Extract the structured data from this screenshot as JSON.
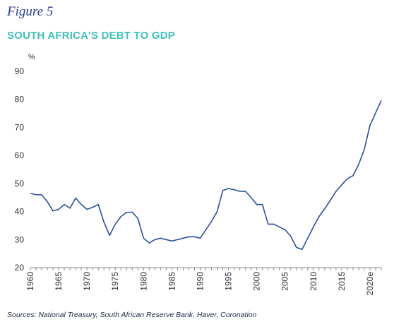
{
  "header": {
    "figure_label": "Figure 5",
    "title": "SOUTH AFRICA'S DEBT TO GDP"
  },
  "footer": {
    "sources": "Sources: National Treasury, South African Reserve Bank, Haver, Coronation"
  },
  "colors": {
    "line": "#2b4f9e",
    "title": "#3ec1bd",
    "figure_label": "#2a3a8c"
  },
  "chart_data": {
    "type": "line",
    "title": "SOUTH AFRICA'S DEBT TO GDP",
    "ylabel": "%",
    "xlabel": "",
    "ylim": [
      20,
      90
    ],
    "xlim": [
      1960,
      2022
    ],
    "y_ticks": [
      20,
      30,
      40,
      50,
      60,
      70,
      80,
      90
    ],
    "x_ticks": [
      {
        "value": 1960,
        "label": "1960"
      },
      {
        "value": 1965,
        "label": "1965"
      },
      {
        "value": 1970,
        "label": "1970"
      },
      {
        "value": 1975,
        "label": "1975"
      },
      {
        "value": 1980,
        "label": "1980"
      },
      {
        "value": 1985,
        "label": "1985"
      },
      {
        "value": 1990,
        "label": "1990"
      },
      {
        "value": 1995,
        "label": "1995"
      },
      {
        "value": 2000,
        "label": "2000"
      },
      {
        "value": 2005,
        "label": "2005"
      },
      {
        "value": 2010,
        "label": "2010"
      },
      {
        "value": 2015,
        "label": "2015"
      },
      {
        "value": 2020,
        "label": "2020e"
      }
    ],
    "grid": false,
    "series": [
      {
        "x": [
          1960,
          1961,
          1962,
          1963,
          1964,
          1965,
          1966,
          1967,
          1968,
          1969,
          1970,
          1971,
          1972,
          1973,
          1974,
          1975,
          1976,
          1977,
          1978,
          1979,
          1980,
          1981,
          1982,
          1983,
          1984,
          1985,
          1986,
          1987,
          1988,
          1989,
          1990,
          1991,
          1992,
          1993,
          1994,
          1995,
          1996,
          1997,
          1998,
          1999,
          2000,
          2001,
          2002,
          2003,
          2004,
          2005,
          2006,
          2007,
          2008,
          2009,
          2010,
          2011,
          2012,
          2013,
          2014,
          2015,
          2016,
          2017,
          2018,
          2019,
          2020,
          2021,
          2022
        ],
        "values": [
          46.5,
          46,
          46,
          43.5,
          40.2,
          40.8,
          42.5,
          41.2,
          44.8,
          42.5,
          40.8,
          41.5,
          42.5,
          36.2,
          31.5,
          35.5,
          38.2,
          39.7,
          39.8,
          37.5,
          30.5,
          28.8,
          30,
          30.5,
          30,
          29.5,
          30,
          30.5,
          31,
          31,
          30.5,
          33.5,
          36.5,
          40,
          47.5,
          48.2,
          47.8,
          47.2,
          47.2,
          45,
          42.5,
          42.5,
          35.5,
          35.5,
          34.5,
          33.5,
          31.2,
          27.2,
          26.5,
          30.5,
          34.5,
          38.2,
          41,
          44,
          47.2,
          49.5,
          51.7,
          52.8,
          56.8,
          62.2,
          70.7,
          75.2,
          79.6
        ]
      }
    ]
  }
}
